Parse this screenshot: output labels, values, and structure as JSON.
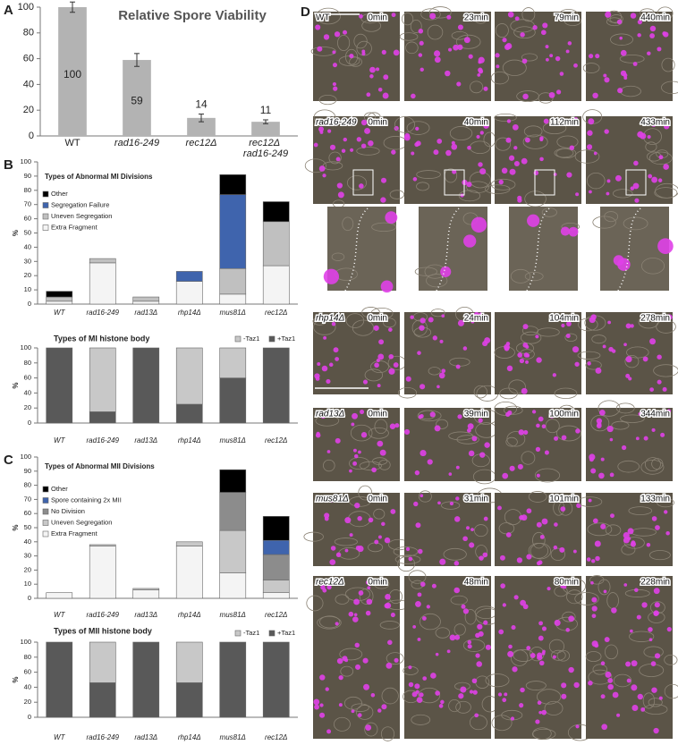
{
  "chart_data": [
    {
      "type": "bar",
      "panel_label": "A",
      "title": "Relative Spore Viability",
      "categories": [
        "WT",
        "rad16-249",
        "rec12Δ",
        "rec12Δ rad16-249"
      ],
      "values": [
        100,
        59,
        14,
        11
      ],
      "errors": [
        4,
        5,
        3,
        1.5
      ],
      "color": "#b3b3b3",
      "ylim": [
        0,
        100
      ],
      "yticks": [
        0,
        20,
        40,
        60,
        80,
        100
      ],
      "grid": false
    },
    {
      "type": "stacked_bar",
      "panel_label": "B",
      "title": "Types of Abnormal MI Divisions",
      "ylabel": "%",
      "categories": [
        "WT",
        "rad16-249",
        "rad13Δ",
        "rhp14Δ",
        "mus81Δ",
        "rec12Δ"
      ],
      "series": [
        {
          "name": "Extra Fragment",
          "color": "#f4f4f4",
          "values": [
            2,
            29,
            2,
            16,
            7,
            27
          ]
        },
        {
          "name": "Uneven Segregation",
          "color": "#c0c0c0",
          "values": [
            3,
            3,
            3,
            0,
            18,
            31
          ]
        },
        {
          "name": "Segregation Failure",
          "color": "#3f64ad",
          "values": [
            0,
            0,
            0,
            7,
            52,
            0
          ]
        },
        {
          "name": "Other",
          "color": "#000000",
          "values": [
            4,
            0,
            0,
            0,
            14,
            14
          ]
        }
      ],
      "ylim": [
        0,
        100
      ],
      "yticks": [
        0,
        10,
        20,
        30,
        40,
        50,
        60,
        70,
        80,
        90,
        100
      ],
      "grid": false,
      "legend": "top-left"
    },
    {
      "type": "stacked_bar",
      "title": "Types of MI histone body",
      "ylabel": "%",
      "categories": [
        "WT",
        "rad16-249",
        "rad13Δ",
        "rhp14Δ",
        "mus81Δ",
        "rec12Δ"
      ],
      "series": [
        {
          "name": "+Taz1",
          "color": "#595959",
          "values": [
            100,
            15,
            100,
            25,
            60,
            100
          ]
        },
        {
          "name": "-Taz1",
          "color": "#c8c8c8",
          "values": [
            0,
            85,
            0,
            75,
            40,
            0
          ]
        }
      ],
      "ylim": [
        0,
        100
      ],
      "yticks": [
        0,
        20,
        40,
        60,
        80,
        100
      ],
      "grid": false,
      "legend": "top-right"
    },
    {
      "type": "stacked_bar",
      "panel_label": "C",
      "title": "Types of Abnormal MII Divisions",
      "ylabel": "%",
      "categories": [
        "WT",
        "rad16-249",
        "rad13Δ",
        "rhp14Δ",
        "mus81Δ",
        "rec12Δ"
      ],
      "series": [
        {
          "name": "Extra Fragment",
          "color": "#f4f4f4",
          "values": [
            4,
            37,
            6,
            37,
            18,
            4
          ]
        },
        {
          "name": "Uneven Segregation",
          "color": "#c8c8c8",
          "values": [
            0,
            1,
            1,
            3,
            30,
            9
          ]
        },
        {
          "name": "No Division",
          "color": "#8c8c8c",
          "values": [
            0,
            0,
            0,
            0,
            27,
            18
          ]
        },
        {
          "name": "Spore containing 2x MII",
          "color": "#3f64ad",
          "values": [
            0,
            0,
            0,
            0,
            0,
            10
          ]
        },
        {
          "name": "Other",
          "color": "#000000",
          "values": [
            0,
            0,
            0,
            0,
            16,
            17
          ]
        }
      ],
      "ylim": [
        0,
        100
      ],
      "yticks": [
        0,
        10,
        20,
        30,
        40,
        50,
        60,
        70,
        80,
        90,
        100
      ],
      "grid": false,
      "legend": "top-left"
    },
    {
      "type": "stacked_bar",
      "title": "Types of MII histone body",
      "ylabel": "%",
      "categories": [
        "WT",
        "rad16-249",
        "rad13Δ",
        "rhp14Δ",
        "mus81Δ",
        "rec12Δ"
      ],
      "series": [
        {
          "name": "+Taz1",
          "color": "#595959",
          "values": [
            100,
            46,
            100,
            46,
            100,
            100
          ]
        },
        {
          "name": "-Taz1",
          "color": "#c8c8c8",
          "values": [
            0,
            54,
            0,
            54,
            0,
            0
          ]
        }
      ],
      "ylim": [
        0,
        100
      ],
      "yticks": [
        0,
        20,
        40,
        60,
        80,
        100
      ],
      "grid": false,
      "legend": "top-right"
    }
  ],
  "panel_d": {
    "label": "D",
    "rows": [
      {
        "strain": "WT",
        "times": [
          "0min",
          "23min",
          "79min",
          "440min"
        ]
      },
      {
        "strain": "rad16-249",
        "times": [
          "0min",
          "40min",
          "112min",
          "433min"
        ]
      },
      {
        "strain": "rhp14Δ",
        "times": [
          "0min",
          "24min",
          "104min",
          "278min"
        ]
      },
      {
        "strain": "rad13Δ",
        "times": [
          "0min",
          "39min",
          "100min",
          "344min"
        ]
      },
      {
        "strain": "mus81Δ",
        "times": [
          "0min",
          "31min",
          "101min",
          "133min"
        ]
      },
      {
        "strain": "rec12Δ",
        "times": [
          "0min",
          "48min",
          "80min",
          "228min"
        ]
      }
    ]
  }
}
